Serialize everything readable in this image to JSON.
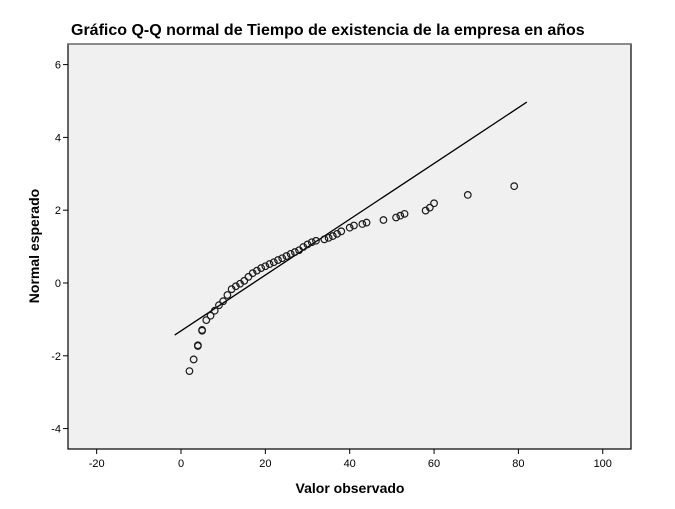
{
  "chart_data": {
    "type": "scatter",
    "title": "Gráfico Q-Q normal de Tiempo de existencia de la empresa en años",
    "xlabel": "Valor observado",
    "ylabel": "Normal esperado",
    "xlim": [
      -26,
      107
    ],
    "ylim": [
      -4.6,
      6.5
    ],
    "xticks": [
      -20,
      0,
      20,
      40,
      60,
      80,
      100
    ],
    "yticks": [
      -4,
      -2,
      0,
      2,
      4,
      6
    ],
    "grid": false,
    "legend": null,
    "background_color": "#f0f0f0",
    "marker": "open-circle",
    "reference_line": {
      "from": {
        "x": -1.5,
        "y": -1.43
      },
      "to": {
        "x": 82,
        "y": 4.97
      }
    },
    "series": [
      {
        "name": "Tiempo de existencia de la empresa en años",
        "points": [
          {
            "x": 2,
            "y": -2.42
          },
          {
            "x": 3,
            "y": -2.1
          },
          {
            "x": 4,
            "y": -1.73
          },
          {
            "x": 4,
            "y": -1.71
          },
          {
            "x": 5,
            "y": -1.31
          },
          {
            "x": 5,
            "y": -1.29
          },
          {
            "x": 6,
            "y": -1.02
          },
          {
            "x": 7,
            "y": -0.9
          },
          {
            "x": 8,
            "y": -0.76
          },
          {
            "x": 9,
            "y": -0.61
          },
          {
            "x": 10,
            "y": -0.5
          },
          {
            "x": 11,
            "y": -0.33
          },
          {
            "x": 12,
            "y": -0.17
          },
          {
            "x": 13,
            "y": -0.09
          },
          {
            "x": 14,
            "y": -0.02
          },
          {
            "x": 15,
            "y": 0.06
          },
          {
            "x": 16,
            "y": 0.17
          },
          {
            "x": 17,
            "y": 0.27
          },
          {
            "x": 18,
            "y": 0.34
          },
          {
            "x": 19,
            "y": 0.41
          },
          {
            "x": 20,
            "y": 0.46
          },
          {
            "x": 21,
            "y": 0.52
          },
          {
            "x": 22,
            "y": 0.57
          },
          {
            "x": 23,
            "y": 0.63
          },
          {
            "x": 24,
            "y": 0.68
          },
          {
            "x": 25,
            "y": 0.74
          },
          {
            "x": 26,
            "y": 0.8
          },
          {
            "x": 27,
            "y": 0.85
          },
          {
            "x": 28,
            "y": 0.9
          },
          {
            "x": 29,
            "y": 0.99
          },
          {
            "x": 30,
            "y": 1.06
          },
          {
            "x": 31,
            "y": 1.12
          },
          {
            "x": 32,
            "y": 1.16
          },
          {
            "x": 34,
            "y": 1.2
          },
          {
            "x": 35,
            "y": 1.24
          },
          {
            "x": 36,
            "y": 1.29
          },
          {
            "x": 37,
            "y": 1.35
          },
          {
            "x": 38,
            "y": 1.42
          },
          {
            "x": 40,
            "y": 1.52
          },
          {
            "x": 41,
            "y": 1.58
          },
          {
            "x": 43,
            "y": 1.62
          },
          {
            "x": 44,
            "y": 1.66
          },
          {
            "x": 48,
            "y": 1.73
          },
          {
            "x": 51,
            "y": 1.8
          },
          {
            "x": 52,
            "y": 1.85
          },
          {
            "x": 53,
            "y": 1.9
          },
          {
            "x": 58,
            "y": 1.99
          },
          {
            "x": 59,
            "y": 2.07
          },
          {
            "x": 60,
            "y": 2.19
          },
          {
            "x": 68,
            "y": 2.42
          },
          {
            "x": 79,
            "y": 2.66
          }
        ]
      }
    ]
  }
}
